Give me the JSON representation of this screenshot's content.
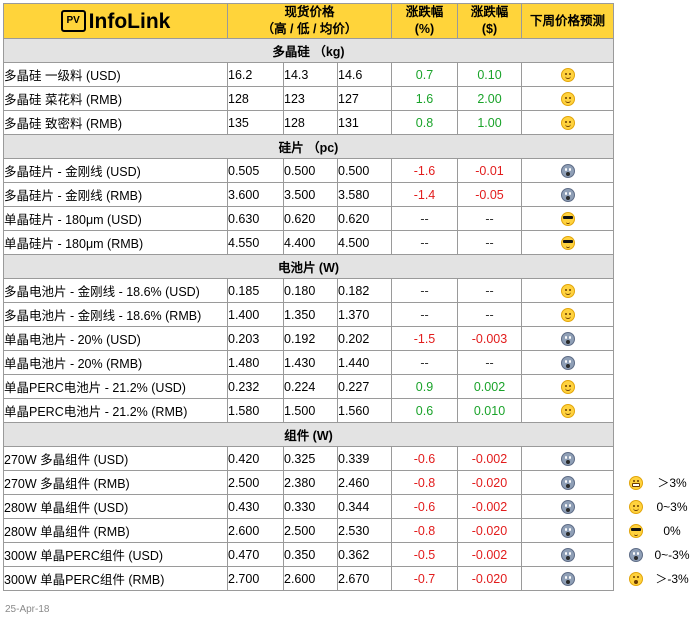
{
  "header": {
    "logo_badge": "PV",
    "logo_text": "InfoLink",
    "price_line1": "现货价格",
    "price_line2": "（高 / 低 / 均价）",
    "chg_pct_line1": "涨跌幅",
    "chg_pct_line2": "(%)",
    "chg_abs_line1": "涨跌幅",
    "chg_abs_line2": "($)",
    "forecast": "下周价格预测"
  },
  "rows": [
    {
      "kind": "section",
      "title": "多晶硅 （kg)"
    },
    {
      "kind": "item",
      "name": "多晶硅 一级料 (USD)",
      "high": "16.2",
      "low": "14.3",
      "avg": "14.6",
      "pct": "0.7",
      "abs": "0.10",
      "dir": "pos",
      "icon": "happy"
    },
    {
      "kind": "item",
      "name": "多晶硅 菜花料 (RMB)",
      "high": "128",
      "low": "123",
      "avg": "127",
      "pct": "1.6",
      "abs": "2.00",
      "dir": "pos",
      "icon": "happy"
    },
    {
      "kind": "item",
      "name": "多晶硅 致密料 (RMB)",
      "high": "135",
      "low": "128",
      "avg": "131",
      "pct": "0.8",
      "abs": "1.00",
      "dir": "pos",
      "icon": "happy"
    },
    {
      "kind": "section",
      "title": "硅片 （pc)"
    },
    {
      "kind": "item",
      "name": "多晶硅片 - 金刚线 (USD)",
      "high": "0.505",
      "low": "0.500",
      "avg": "0.500",
      "pct": "-1.6",
      "abs": "-0.01",
      "dir": "neg",
      "icon": "fear"
    },
    {
      "kind": "item",
      "name": "多晶硅片 - 金刚线 (RMB)",
      "high": "3.600",
      "low": "3.500",
      "avg": "3.580",
      "pct": "-1.4",
      "abs": "-0.05",
      "dir": "neg",
      "icon": "fear"
    },
    {
      "kind": "item",
      "name": "单晶硅片 - 180μm (USD)",
      "high": "0.630",
      "low": "0.620",
      "avg": "0.620",
      "pct": "--",
      "abs": "--",
      "dir": "neu",
      "icon": "cool"
    },
    {
      "kind": "item",
      "name": "单晶硅片 - 180μm (RMB)",
      "high": "4.550",
      "low": "4.400",
      "avg": "4.500",
      "pct": "--",
      "abs": "--",
      "dir": "neu",
      "icon": "cool"
    },
    {
      "kind": "section",
      "title": "电池片 (W)"
    },
    {
      "kind": "item",
      "name": "多晶电池片 - 金刚线 - 18.6% (USD)",
      "high": "0.185",
      "low": "0.180",
      "avg": "0.182",
      "pct": "--",
      "abs": "--",
      "dir": "neu",
      "icon": "happy"
    },
    {
      "kind": "item",
      "name": "多晶电池片 - 金刚线 - 18.6% (RMB)",
      "high": "1.400",
      "low": "1.350",
      "avg": "1.370",
      "pct": "--",
      "abs": "--",
      "dir": "neu",
      "icon": "happy"
    },
    {
      "kind": "item",
      "name": "单晶电池片 - 20% (USD)",
      "high": "0.203",
      "low": "0.192",
      "avg": "0.202",
      "pct": "-1.5",
      "abs": "-0.003",
      "dir": "neg",
      "icon": "fear"
    },
    {
      "kind": "item",
      "name": "单晶电池片 - 20% (RMB)",
      "high": "1.480",
      "low": "1.430",
      "avg": "1.440",
      "pct": "--",
      "abs": "--",
      "dir": "neu",
      "icon": "fear"
    },
    {
      "kind": "item",
      "name": "单晶PERC电池片 - 21.2% (USD)",
      "high": "0.232",
      "low": "0.224",
      "avg": "0.227",
      "pct": "0.9",
      "abs": "0.002",
      "dir": "pos",
      "icon": "happy"
    },
    {
      "kind": "item",
      "name": "单晶PERC电池片 - 21.2% (RMB)",
      "high": "1.580",
      "low": "1.500",
      "avg": "1.560",
      "pct": "0.6",
      "abs": "0.010",
      "dir": "pos",
      "icon": "happy"
    },
    {
      "kind": "section",
      "title": "组件 (W)"
    },
    {
      "kind": "item",
      "name": "270W 多晶组件 (USD)",
      "high": "0.420",
      "low": "0.325",
      "avg": "0.339",
      "pct": "-0.6",
      "abs": "-0.002",
      "dir": "neg",
      "icon": "fear"
    },
    {
      "kind": "item",
      "name": "270W 多晶组件 (RMB)",
      "high": "2.500",
      "low": "2.380",
      "avg": "2.460",
      "pct": "-0.8",
      "abs": "-0.020",
      "dir": "neg",
      "icon": "fear"
    },
    {
      "kind": "item",
      "name": "280W 单晶组件 (USD)",
      "high": "0.430",
      "low": "0.330",
      "avg": "0.344",
      "pct": "-0.6",
      "abs": "-0.002",
      "dir": "neg",
      "icon": "fear"
    },
    {
      "kind": "item",
      "name": "280W 单晶组件 (RMB)",
      "high": "2.600",
      "low": "2.500",
      "avg": "2.530",
      "pct": "-0.8",
      "abs": "-0.020",
      "dir": "neg",
      "icon": "fear"
    },
    {
      "kind": "item",
      "name": "300W 单晶PERC组件 (USD)",
      "high": "0.470",
      "low": "0.350",
      "avg": "0.362",
      "pct": "-0.5",
      "abs": "-0.002",
      "dir": "neg",
      "icon": "fear"
    },
    {
      "kind": "item",
      "name": "300W 单晶PERC组件 (RMB)",
      "high": "2.700",
      "low": "2.600",
      "avg": "2.670",
      "pct": "-0.7",
      "abs": "-0.020",
      "dir": "neg",
      "icon": "fear"
    }
  ],
  "legend": [
    {
      "icon": "grin",
      "label": "＞3%"
    },
    {
      "icon": "happy",
      "label": "0~3%"
    },
    {
      "icon": "cool",
      "label": "0%"
    },
    {
      "icon": "fear",
      "label": "0~-3%"
    },
    {
      "icon": "wow",
      "label": "＞-3%"
    }
  ],
  "footer": {
    "date": "25-Apr-18"
  },
  "colors": {
    "header_bg": "#ffd43a",
    "section_bg": "#e3e3e3",
    "up": "#1aa32a",
    "down": "#e21c1c"
  },
  "icon_names": {
    "happy": "smiling-face-icon",
    "fear": "screaming-face-icon",
    "cool": "sunglasses-face-icon",
    "grin": "grinning-face-icon",
    "wow": "astonished-face-icon"
  }
}
